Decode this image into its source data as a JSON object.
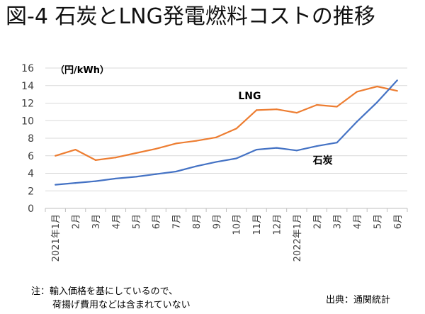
{
  "title": "図-4 石炭とLNG発電燃料コストの推移",
  "note": {
    "line1": "注：輸入価格を基にしているので、",
    "line2": "荷揚げ費用などは含まれていない"
  },
  "source": "出典：通関統計",
  "chart_data": {
    "type": "line",
    "title": "図-4 石炭とLNG発電燃料コストの推移",
    "unit_label": "（円/kWh）",
    "xlabel": "",
    "ylabel": "",
    "ylim": [
      0,
      16
    ],
    "yticks": [
      0,
      2,
      4,
      6,
      8,
      10,
      12,
      14,
      16
    ],
    "grid": "horizontal",
    "categories": [
      "2021年1月",
      "2月",
      "3月",
      "4月",
      "5月",
      "6月",
      "7月",
      "8月",
      "9月",
      "10月",
      "11月",
      "12月",
      "2022年1月",
      "2月",
      "3月",
      "4月",
      "5月",
      "6月"
    ],
    "series": [
      {
        "name": "LNG",
        "color": "#ED7D31",
        "values": [
          6.0,
          6.7,
          5.5,
          5.8,
          6.3,
          6.8,
          7.4,
          7.7,
          8.1,
          9.1,
          11.2,
          11.3,
          10.9,
          11.8,
          11.6,
          13.3,
          13.9,
          13.4
        ]
      },
      {
        "name": "石炭",
        "color": "#4472C4",
        "values": [
          2.7,
          2.9,
          3.1,
          3.4,
          3.6,
          3.9,
          4.2,
          4.8,
          5.3,
          5.7,
          6.7,
          6.9,
          6.6,
          7.1,
          7.5,
          9.9,
          12.1,
          14.6
        ]
      }
    ]
  }
}
